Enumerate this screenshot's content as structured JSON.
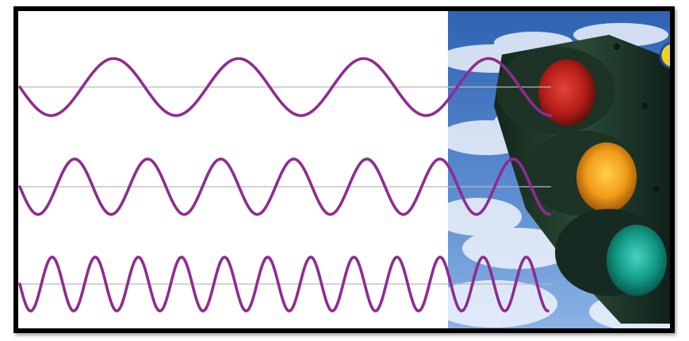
{
  "figure": {
    "waves": [
      {
        "id": "red-light-wave",
        "cycles": 4.25
      },
      {
        "id": "yellow-light-wave",
        "cycles": 7.25
      },
      {
        "id": "green-light-wave",
        "cycles": 12.25
      }
    ],
    "lights": [
      "red",
      "amber",
      "green"
    ],
    "colors": {
      "wave": "#8e2c91",
      "axis": "#b9b9b9",
      "frame": "#000000",
      "sky_top": "#3b6fbd",
      "sky_bottom": "#6e9fd8",
      "cloud": "#f2f5fb",
      "housing": "#1f3a2a",
      "light_red": "#c4261d",
      "light_amber": "#f29c18",
      "light_green": "#1fa28c"
    },
    "icons": [
      "traffic-light-icon",
      "sky-clouds-background"
    ]
  }
}
